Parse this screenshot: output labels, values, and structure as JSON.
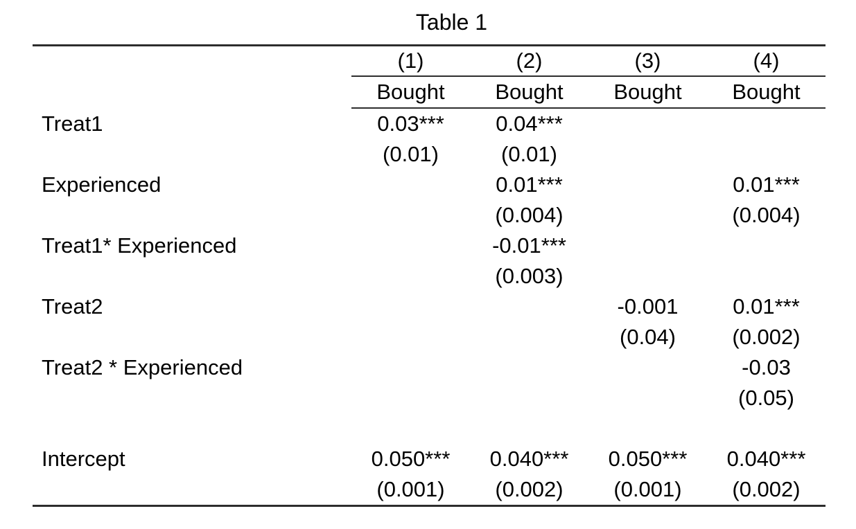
{
  "table": {
    "title": "Table 1",
    "model_numbers": [
      "(1)",
      "(2)",
      "(3)",
      "(4)"
    ],
    "dep_var": [
      "Bought",
      "Bought",
      "Bought",
      "Bought"
    ],
    "rows": [
      {
        "label": "Treat1",
        "coefs": [
          "0.03***",
          "0.04***",
          "",
          ""
        ],
        "ses": [
          "(0.01)",
          "(0.01)",
          "",
          ""
        ]
      },
      {
        "label": "Experienced",
        "coefs": [
          "",
          "0.01***",
          "",
          "0.01***"
        ],
        "ses": [
          "",
          "(0.004)",
          "",
          "(0.004)"
        ]
      },
      {
        "label": "Treat1* Experienced",
        "coefs": [
          "",
          "-0.01***",
          "",
          ""
        ],
        "ses": [
          "",
          "(0.003)",
          "",
          ""
        ]
      },
      {
        "label": "Treat2",
        "coefs": [
          "",
          "",
          "-0.001",
          "0.01***"
        ],
        "ses": [
          "",
          "",
          "(0.04)",
          "(0.002)"
        ]
      },
      {
        "label": "Treat2 * Experienced",
        "coefs": [
          "",
          "",
          "",
          "-0.03"
        ],
        "ses": [
          "",
          "",
          "",
          "(0.05)"
        ]
      },
      {
        "spacer": true
      },
      {
        "label": "Intercept",
        "coefs": [
          "0.050***",
          "0.040***",
          "0.050***",
          "0.040***"
        ],
        "ses": [
          "(0.001)",
          "(0.002)",
          "(0.001)",
          "(0.002)"
        ]
      }
    ]
  }
}
